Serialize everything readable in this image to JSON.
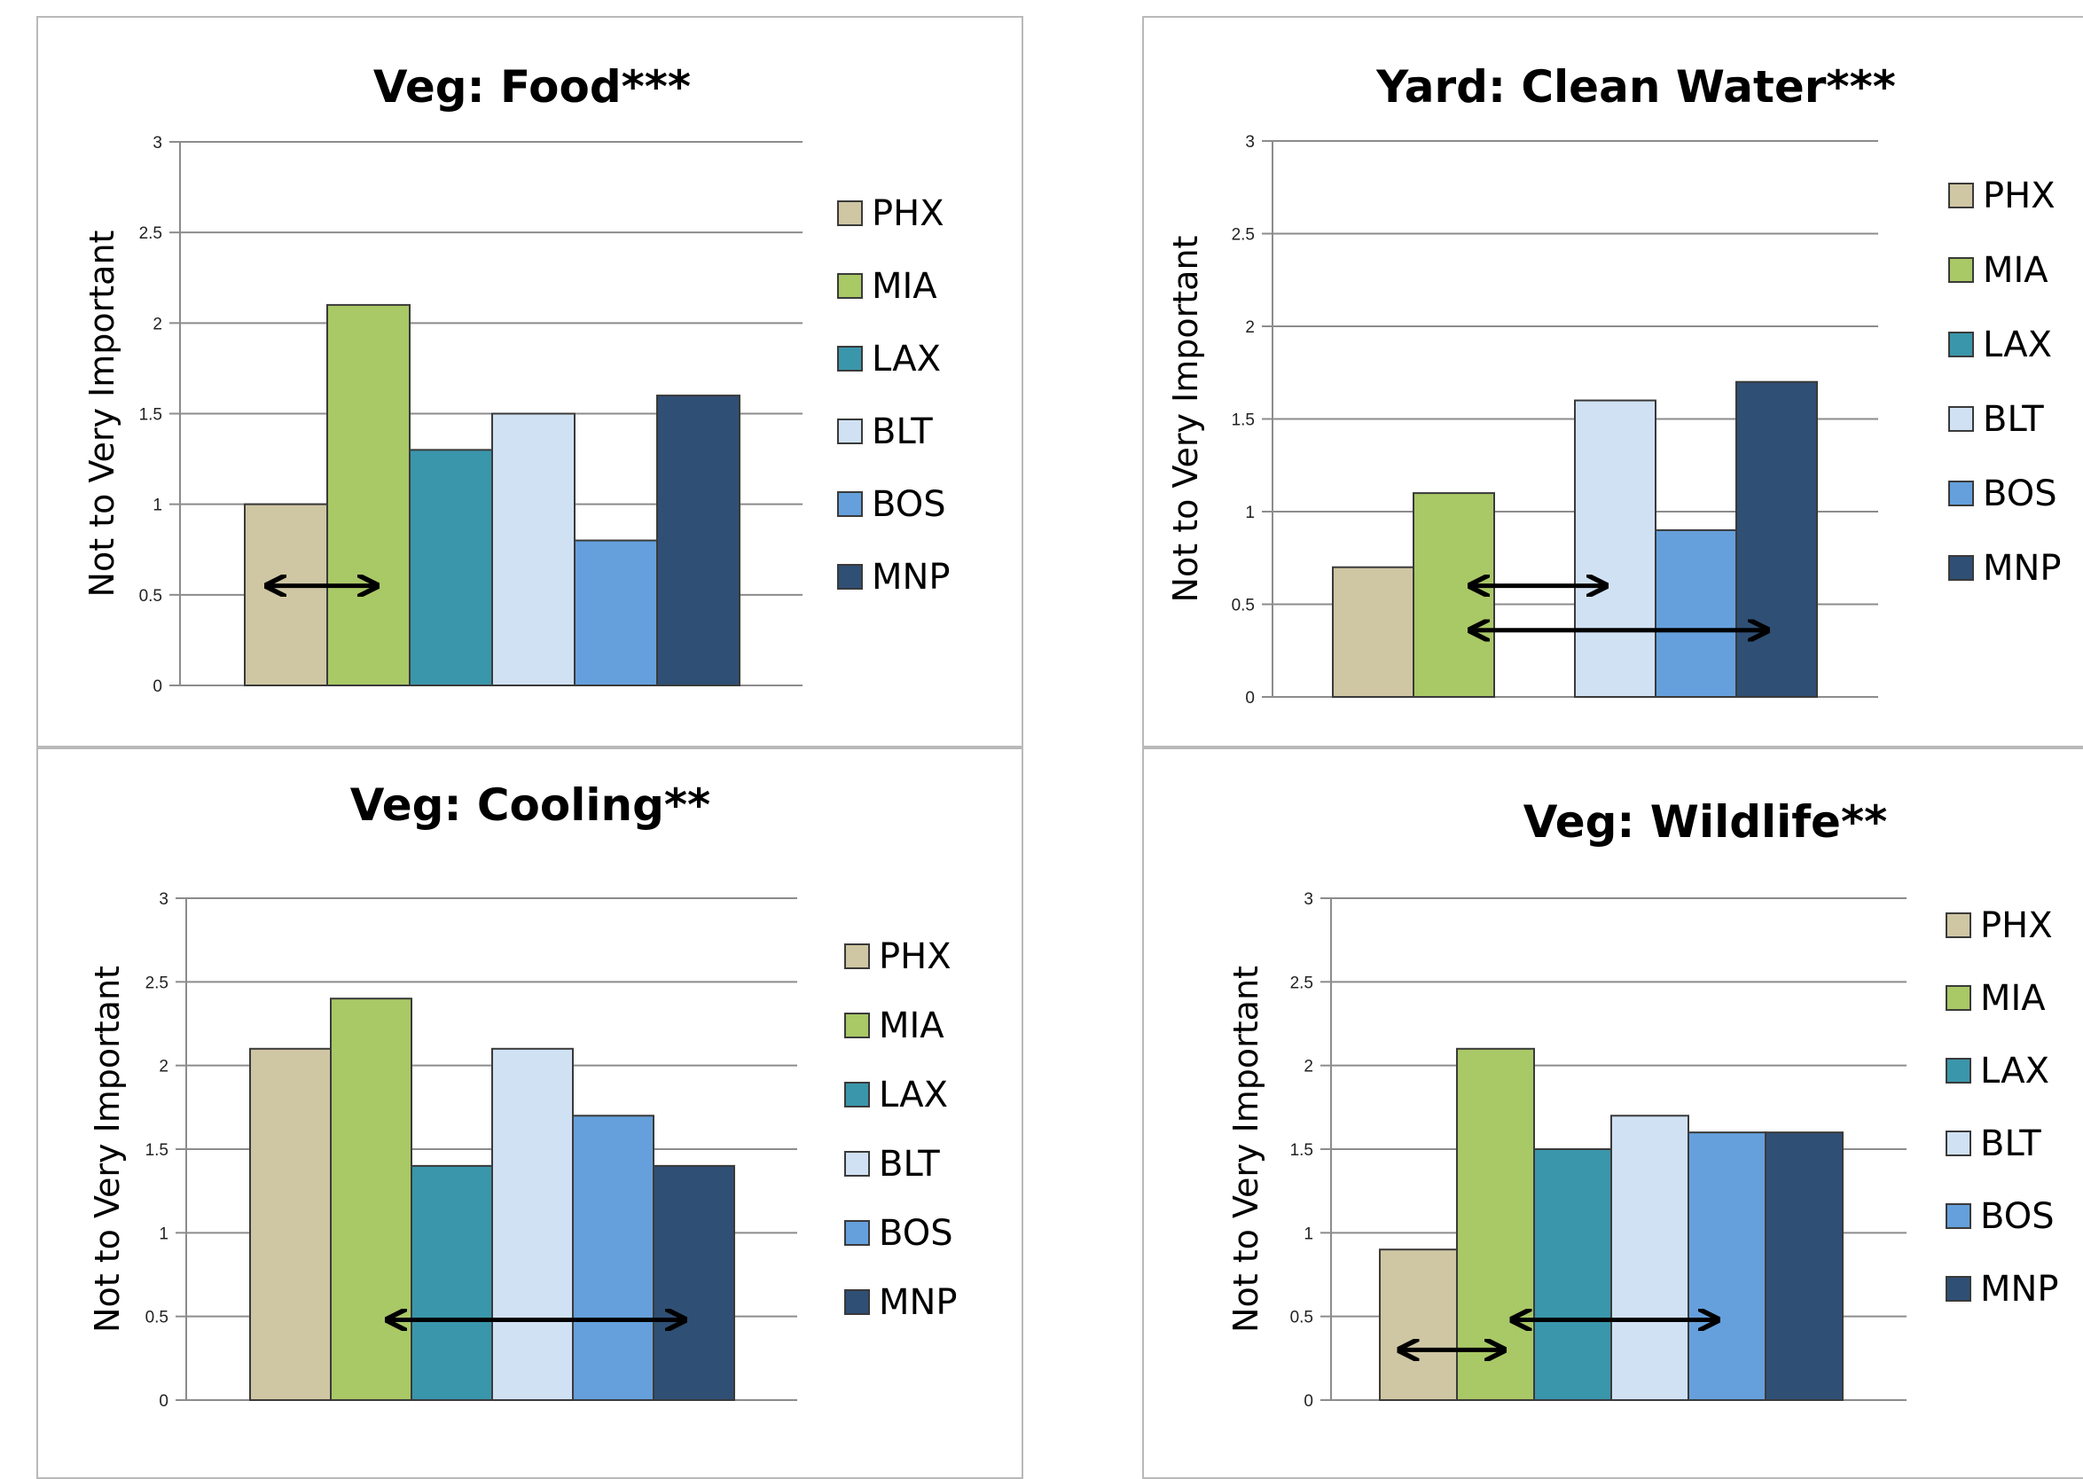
{
  "colors": {
    "PHX": "#cfc6a3",
    "MIA": "#a9c866",
    "LAX": "#3a96ab",
    "BLT": "#d0e1f3",
    "BOS": "#65a0dc",
    "MNP": "#2f4f75",
    "gridline": "#8c8c8c",
    "arrow": "#000000"
  },
  "chart_data": [
    {
      "type": "bar",
      "title": "Veg: Food***",
      "ylabel": "Not to Very Important",
      "ylim": [
        0,
        3
      ],
      "yticks": [
        "0",
        "0.5",
        "1",
        "1.5",
        "2",
        "2.5",
        "3"
      ],
      "grid": true,
      "legend_placement": "right",
      "series": [
        {
          "name": "PHX",
          "values": [
            1.0
          ]
        },
        {
          "name": "MIA",
          "values": [
            2.1
          ]
        },
        {
          "name": "LAX",
          "values": [
            1.3
          ]
        },
        {
          "name": "BLT",
          "values": [
            1.5
          ]
        },
        {
          "name": "BOS",
          "values": [
            0.8
          ]
        },
        {
          "name": "MNP",
          "values": [
            1.6
          ]
        }
      ],
      "annotations": [
        {
          "type": "double-arrow",
          "from_series": "PHX",
          "to_series": "MIA",
          "y": 0.55
        }
      ]
    },
    {
      "type": "bar",
      "title": "Yard: Clean Water***",
      "ylabel": "Not to Very Important",
      "ylim": [
        0,
        3
      ],
      "yticks": [
        "0",
        "0.5",
        "1",
        "1.5",
        "2",
        "2.5",
        "3"
      ],
      "grid": true,
      "legend_placement": "right",
      "series": [
        {
          "name": "PHX",
          "values": [
            0.7
          ]
        },
        {
          "name": "MIA",
          "values": [
            1.1
          ]
        },
        {
          "name": "LAX",
          "values": [
            0
          ]
        },
        {
          "name": "BLT",
          "values": [
            1.6
          ]
        },
        {
          "name": "BOS",
          "values": [
            0.9
          ]
        },
        {
          "name": "MNP",
          "values": [
            1.7
          ]
        }
      ],
      "annotations": [
        {
          "type": "double-arrow",
          "from_series": "MIA",
          "to_series": "BLT",
          "y": 0.6
        },
        {
          "type": "double-arrow",
          "from_series": "MIA",
          "to_series": "MNP",
          "y": 0.36
        }
      ]
    },
    {
      "type": "bar",
      "title": "Veg: Cooling**",
      "ylabel": "Not to Very Important",
      "ylim": [
        0,
        3
      ],
      "yticks": [
        "0",
        "0.5",
        "1",
        "1.5",
        "2",
        "2.5",
        "3"
      ],
      "grid": true,
      "legend_placement": "right",
      "series": [
        {
          "name": "PHX",
          "values": [
            2.1
          ]
        },
        {
          "name": "MIA",
          "values": [
            2.4
          ]
        },
        {
          "name": "LAX",
          "values": [
            1.4
          ]
        },
        {
          "name": "BLT",
          "values": [
            2.1
          ]
        },
        {
          "name": "BOS",
          "values": [
            1.7
          ]
        },
        {
          "name": "MNP",
          "values": [
            1.4
          ]
        }
      ],
      "annotations": [
        {
          "type": "double-arrow",
          "from_series": "MIA",
          "to_series": "MNP",
          "y": 0.48
        }
      ]
    },
    {
      "type": "bar",
      "title": "Veg: Wildlife**",
      "ylabel": "Not to Very Important",
      "ylim": [
        0,
        3
      ],
      "yticks": [
        "0",
        "0.5",
        "1",
        "1.5",
        "2",
        "2.5",
        "3"
      ],
      "grid": true,
      "legend_placement": "right",
      "series": [
        {
          "name": "PHX",
          "values": [
            0.9
          ]
        },
        {
          "name": "MIA",
          "values": [
            2.1
          ]
        },
        {
          "name": "LAX",
          "values": [
            1.5
          ]
        },
        {
          "name": "BLT",
          "values": [
            1.7
          ]
        },
        {
          "name": "BOS",
          "values": [
            1.6
          ]
        },
        {
          "name": "MNP",
          "values": [
            1.6
          ]
        }
      ],
      "annotations": [
        {
          "type": "double-arrow",
          "from_series": "PHX",
          "to_series": "MIA",
          "y": 0.3
        },
        {
          "type": "double-arrow",
          "from_series": "MIA",
          "to_series": "BOS",
          "y": 0.48
        }
      ]
    }
  ]
}
